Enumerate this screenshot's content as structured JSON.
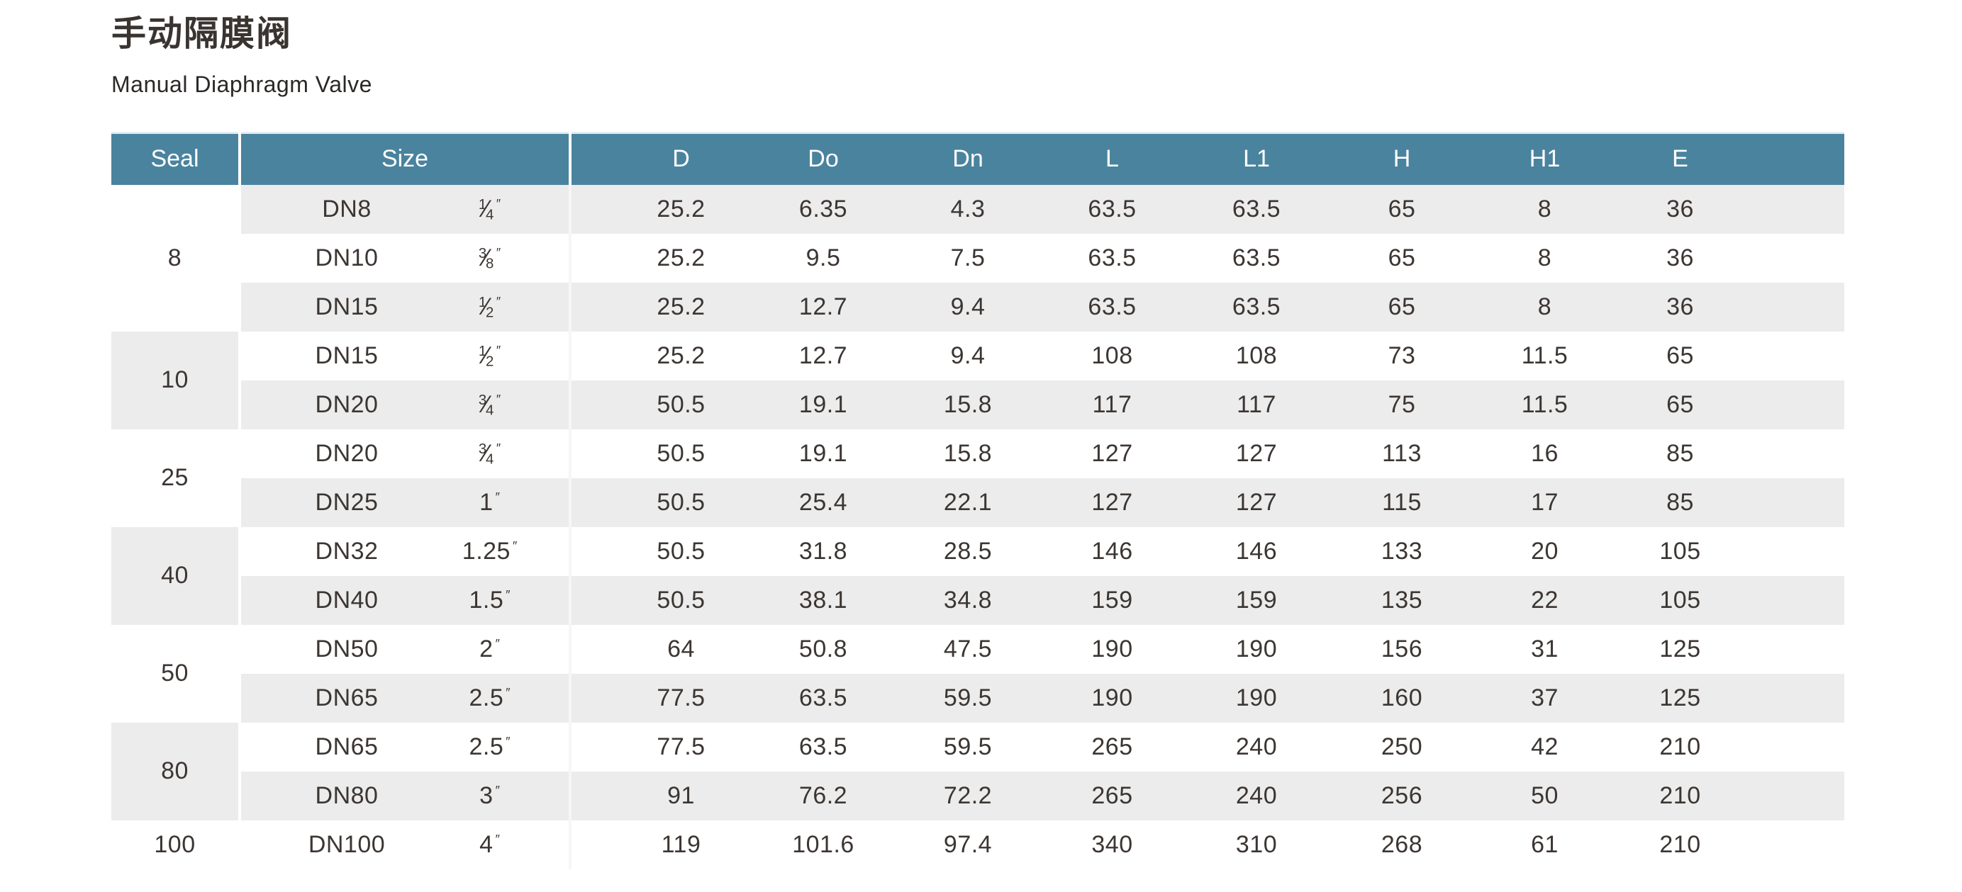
{
  "page": {
    "title_zh": "手动隔膜阀",
    "title_en": "Manual Diaphragm Valve"
  },
  "colors": {
    "header_bg": "#4A839E",
    "header_text": "#FFFFFF",
    "row_alt_bg": "#ECECEC",
    "row_bg": "#FFFFFF",
    "body_text": "#3C3633",
    "separator": "#FFFFFF"
  },
  "table": {
    "headers": {
      "seal": "Seal",
      "size": "Size",
      "dims": [
        "D",
        "Do",
        "Dn",
        "L",
        "L1",
        "H",
        "H1",
        "E"
      ]
    },
    "inch_mark": "″",
    "groups": [
      {
        "seal": "8",
        "rows": [
          {
            "dn": "DN8",
            "inch": "1/4",
            "values": [
              "25.2",
              "6.35",
              "4.3",
              "63.5",
              "63.5",
              "65",
              "8",
              "36"
            ]
          },
          {
            "dn": "DN10",
            "inch": "3/8",
            "values": [
              "25.2",
              "9.5",
              "7.5",
              "63.5",
              "63.5",
              "65",
              "8",
              "36"
            ]
          },
          {
            "dn": "DN15",
            "inch": "1/2",
            "values": [
              "25.2",
              "12.7",
              "9.4",
              "63.5",
              "63.5",
              "65",
              "8",
              "36"
            ]
          }
        ]
      },
      {
        "seal": "10",
        "rows": [
          {
            "dn": "DN15",
            "inch": "1/2",
            "values": [
              "25.2",
              "12.7",
              "9.4",
              "108",
              "108",
              "73",
              "11.5",
              "65"
            ]
          },
          {
            "dn": "DN20",
            "inch": "3/4",
            "values": [
              "50.5",
              "19.1",
              "15.8",
              "117",
              "117",
              "75",
              "11.5",
              "65"
            ]
          }
        ]
      },
      {
        "seal": "25",
        "rows": [
          {
            "dn": "DN20",
            "inch": "3/4",
            "values": [
              "50.5",
              "19.1",
              "15.8",
              "127",
              "127",
              "113",
              "16",
              "85"
            ]
          },
          {
            "dn": "DN25",
            "inch": "1",
            "values": [
              "50.5",
              "25.4",
              "22.1",
              "127",
              "127",
              "115",
              "17",
              "85"
            ]
          }
        ]
      },
      {
        "seal": "40",
        "rows": [
          {
            "dn": "DN32",
            "inch": "1.25",
            "values": [
              "50.5",
              "31.8",
              "28.5",
              "146",
              "146",
              "133",
              "20",
              "105"
            ]
          },
          {
            "dn": "DN40",
            "inch": "1.5",
            "values": [
              "50.5",
              "38.1",
              "34.8",
              "159",
              "159",
              "135",
              "22",
              "105"
            ]
          }
        ]
      },
      {
        "seal": "50",
        "rows": [
          {
            "dn": "DN50",
            "inch": "2",
            "values": [
              "64",
              "50.8",
              "47.5",
              "190",
              "190",
              "156",
              "31",
              "125"
            ]
          },
          {
            "dn": "DN65",
            "inch": "2.5",
            "values": [
              "77.5",
              "63.5",
              "59.5",
              "190",
              "190",
              "160",
              "37",
              "125"
            ]
          }
        ]
      },
      {
        "seal": "80",
        "rows": [
          {
            "dn": "DN65",
            "inch": "2.5",
            "values": [
              "77.5",
              "63.5",
              "59.5",
              "265",
              "240",
              "250",
              "42",
              "210"
            ]
          },
          {
            "dn": "DN80",
            "inch": "3",
            "values": [
              "91",
              "76.2",
              "72.2",
              "265",
              "240",
              "256",
              "50",
              "210"
            ]
          }
        ]
      },
      {
        "seal": "100",
        "rows": [
          {
            "dn": "DN100",
            "inch": "4",
            "values": [
              "119",
              "101.6",
              "97.4",
              "340",
              "310",
              "268",
              "61",
              "210"
            ]
          }
        ]
      }
    ]
  }
}
